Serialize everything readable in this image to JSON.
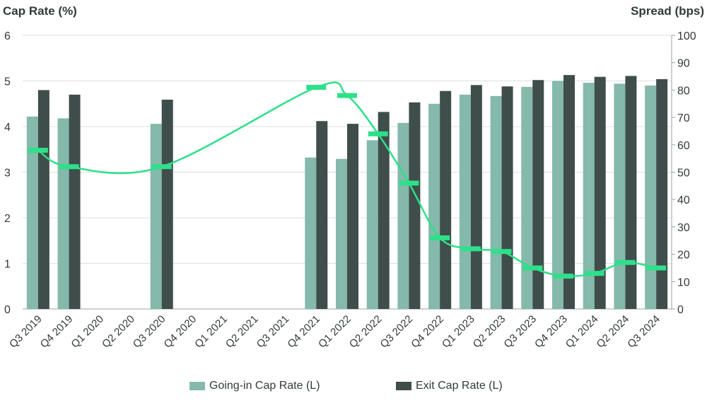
{
  "chart_data": {
    "type": "bar",
    "ylabel": "Cap Rate (%)",
    "y2label": "Spread (bps)",
    "ylim": [
      0,
      6
    ],
    "y2lim": [
      0,
      100
    ],
    "yticks": [
      "0",
      "1",
      "2",
      "3",
      "4",
      "5",
      "6"
    ],
    "y2ticks": [
      "0",
      "10",
      "20",
      "30",
      "40",
      "50",
      "60",
      "70",
      "80",
      "90",
      "100"
    ],
    "categories": [
      "Q3 2019",
      "Q4 2019",
      "Q1 2020",
      "Q2 2020",
      "Q3 2020",
      "Q4 2020",
      "Q1 2021",
      "Q2 2021",
      "Q3 2021",
      "Q4 2021",
      "Q1 2022",
      "Q2 2022",
      "Q3 2022",
      "Q4 2022",
      "Q1 2023",
      "Q2 2023",
      "Q3 2023",
      "Q4 2023",
      "Q1 2024",
      "Q2 2024",
      "Q3 2024"
    ],
    "series": [
      {
        "name": "Going-in Cap Rate (L)",
        "axis": "left",
        "color": "#84b9ab",
        "values": [
          4.22,
          4.18,
          null,
          null,
          4.06,
          null,
          null,
          null,
          null,
          3.32,
          3.29,
          3.7,
          4.08,
          4.5,
          4.7,
          4.67,
          4.87,
          5.0,
          4.96,
          4.94,
          4.9
        ]
      },
      {
        "name": "Exit Cap Rate (L)",
        "axis": "left",
        "color": "#3f4d4b",
        "values": [
          4.8,
          4.7,
          null,
          null,
          4.59,
          null,
          null,
          null,
          null,
          4.12,
          4.06,
          4.32,
          4.53,
          4.78,
          4.91,
          4.88,
          5.02,
          5.13,
          5.09,
          5.11,
          5.04
        ]
      },
      {
        "axis": "right",
        "type": "line",
        "color": "#2ee08a",
        "values": [
          58,
          52,
          null,
          null,
          52,
          null,
          null,
          null,
          null,
          81,
          78,
          64,
          46,
          26,
          22,
          21,
          15,
          12,
          13,
          17,
          15
        ]
      }
    ],
    "legend": {
      "position": "bottom"
    },
    "grid": true
  }
}
